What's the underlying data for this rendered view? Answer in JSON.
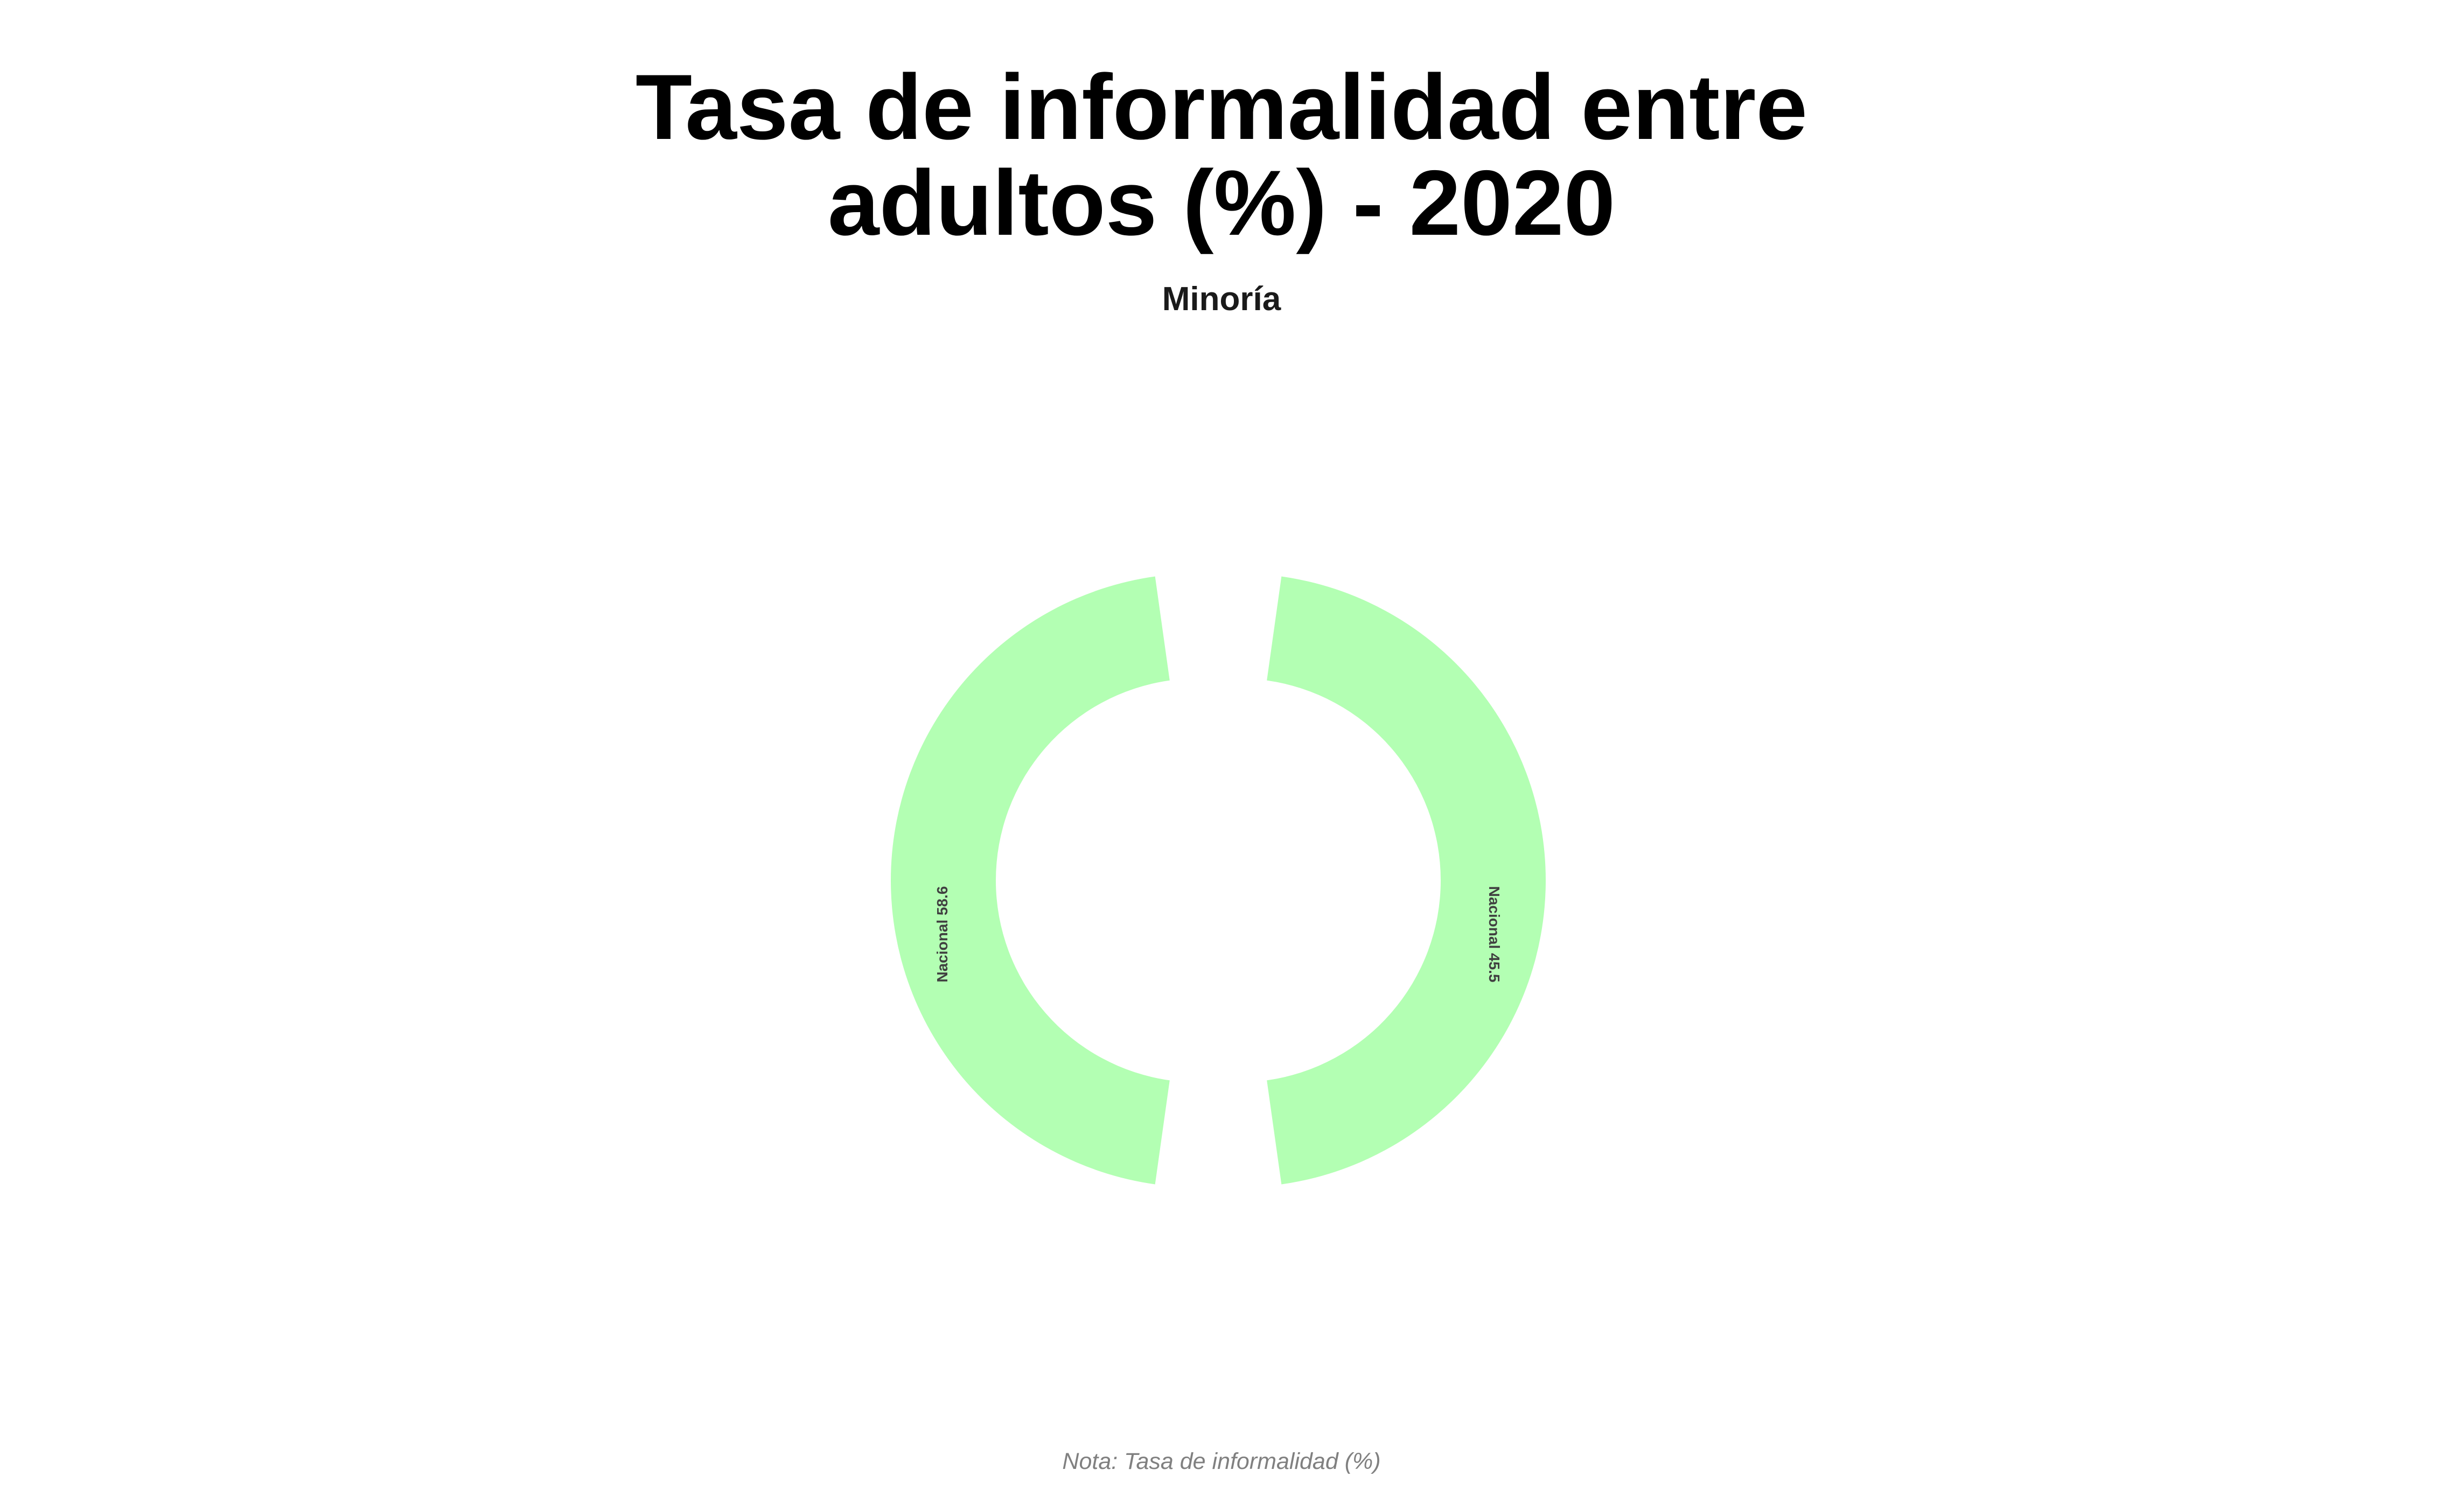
{
  "chart_data": {
    "type": "pie",
    "title_lines": [
      "Tasa de informalidad entre",
      "adultos (%) - 2020"
    ],
    "subtitle": "Minoría",
    "note": "Nota: Tasa de informalidad (%)",
    "style": "donut",
    "segment_color": "#B3FFB3",
    "label_color": "#404040",
    "slices": [
      {
        "label": "Nacional 58.6",
        "category": "Nacional",
        "value": 58.6,
        "side": "left"
      },
      {
        "label": "Nacional 45.5",
        "category": "Nacional",
        "value": 45.5,
        "side": "right"
      }
    ]
  }
}
